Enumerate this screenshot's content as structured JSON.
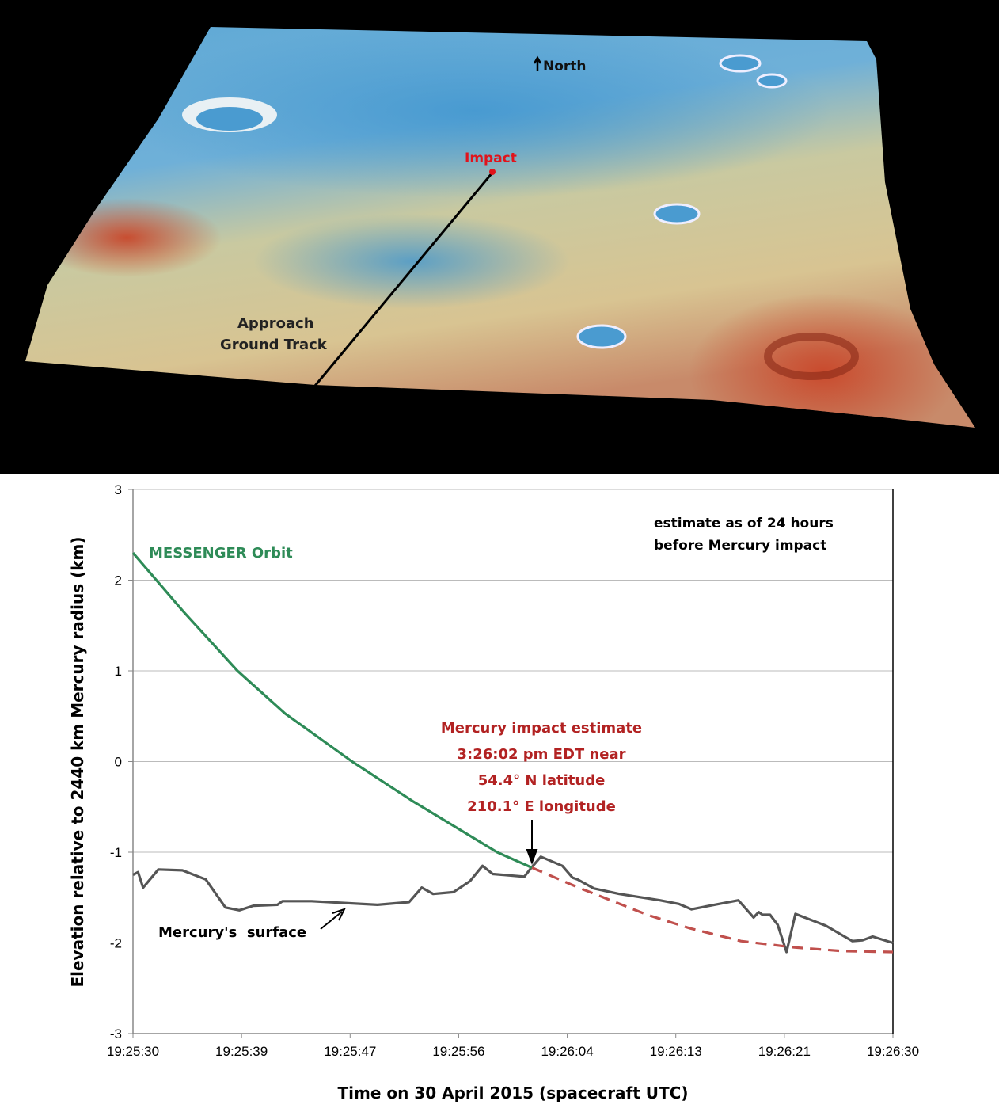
{
  "terrain": {
    "north_label": "North",
    "impact_label": "Impact",
    "track_label_line1": "Approach",
    "track_label_line2": "Ground Track",
    "colors": {
      "low": "#4a9bd0",
      "mid": "#d9cf9a",
      "high": "#cc4a2a",
      "impact": "#e0141c",
      "track": "#000000"
    }
  },
  "chart_data": {
    "type": "line",
    "xlabel": "Time on 30 April 2015 (spacecraft UTC)",
    "ylabel": "Elevation relative to 2440 km Mercury radius (km)",
    "x_tick_labels": [
      "19:25:30",
      "19:25:39",
      "19:25:47",
      "19:25:56",
      "19:26:04",
      "19:26:13",
      "19:26:21",
      "19:26:30"
    ],
    "x_range_seconds_after_19_25_30": [
      0,
      60
    ],
    "ylim": [
      -3,
      3
    ],
    "y_ticks": [
      3,
      2,
      1,
      0,
      -1,
      -2,
      -3
    ],
    "grid": "horizontal",
    "annotation_top_right": [
      "estimate as of 24 hours",
      "before Mercury impact"
    ],
    "impact_annotation": [
      "Mercury impact estimate",
      "3:26:02 pm EDT near",
      "54.4° N latitude",
      "210.1° E longitude"
    ],
    "series": [
      {
        "name": "MESSENGER Orbit",
        "color": "#2e8b57",
        "style": "solid",
        "points": [
          [
            0,
            2.3
          ],
          [
            4,
            1.65
          ],
          [
            8.25,
            1.0
          ],
          [
            12,
            0.53
          ],
          [
            17.3,
            0.0
          ],
          [
            22,
            -0.43
          ],
          [
            28.75,
            -1.0
          ],
          [
            31.5,
            -1.17
          ]
        ]
      },
      {
        "name": "",
        "color": "#c0504d",
        "style": "dashed",
        "points": [
          [
            31.5,
            -1.17
          ],
          [
            35,
            -1.38
          ],
          [
            40.6,
            -1.69
          ],
          [
            44,
            -1.84
          ],
          [
            48,
            -1.98
          ],
          [
            52.2,
            -2.05
          ],
          [
            56,
            -2.09
          ],
          [
            60,
            -2.1
          ]
        ]
      },
      {
        "name": "Mercury's  surface",
        "color": "#555555",
        "style": "solid",
        "points": [
          [
            0,
            -1.25
          ],
          [
            0.4,
            -1.22
          ],
          [
            0.8,
            -1.39
          ],
          [
            2,
            -1.19
          ],
          [
            3.9,
            -1.2
          ],
          [
            5.75,
            -1.3
          ],
          [
            7.3,
            -1.61
          ],
          [
            8.4,
            -1.64
          ],
          [
            9.5,
            -1.59
          ],
          [
            11.4,
            -1.58
          ],
          [
            11.8,
            -1.54
          ],
          [
            14.1,
            -1.54
          ],
          [
            19.3,
            -1.58
          ],
          [
            21.8,
            -1.55
          ],
          [
            22.8,
            -1.39
          ],
          [
            23.7,
            -1.46
          ],
          [
            25.3,
            -1.44
          ],
          [
            26.6,
            -1.32
          ],
          [
            27.6,
            -1.15
          ],
          [
            28.4,
            -1.24
          ],
          [
            30.9,
            -1.27
          ],
          [
            31.4,
            -1.18
          ],
          [
            32.2,
            -1.05
          ],
          [
            33.9,
            -1.15
          ],
          [
            34.7,
            -1.28
          ],
          [
            35.1,
            -1.3
          ],
          [
            36.4,
            -1.4
          ],
          [
            38.4,
            -1.46
          ],
          [
            41.6,
            -1.53
          ],
          [
            43.1,
            -1.57
          ],
          [
            44.1,
            -1.63
          ],
          [
            45.9,
            -1.58
          ],
          [
            47.8,
            -1.53
          ],
          [
            49,
            -1.72
          ],
          [
            49.4,
            -1.66
          ],
          [
            49.7,
            -1.69
          ],
          [
            50.3,
            -1.69
          ],
          [
            50.9,
            -1.8
          ],
          [
            51.6,
            -2.1
          ],
          [
            52.3,
            -1.68
          ],
          [
            54.7,
            -1.81
          ],
          [
            56.8,
            -1.98
          ],
          [
            57.6,
            -1.97
          ],
          [
            58.4,
            -1.93
          ],
          [
            60,
            -2.0
          ]
        ]
      }
    ]
  }
}
